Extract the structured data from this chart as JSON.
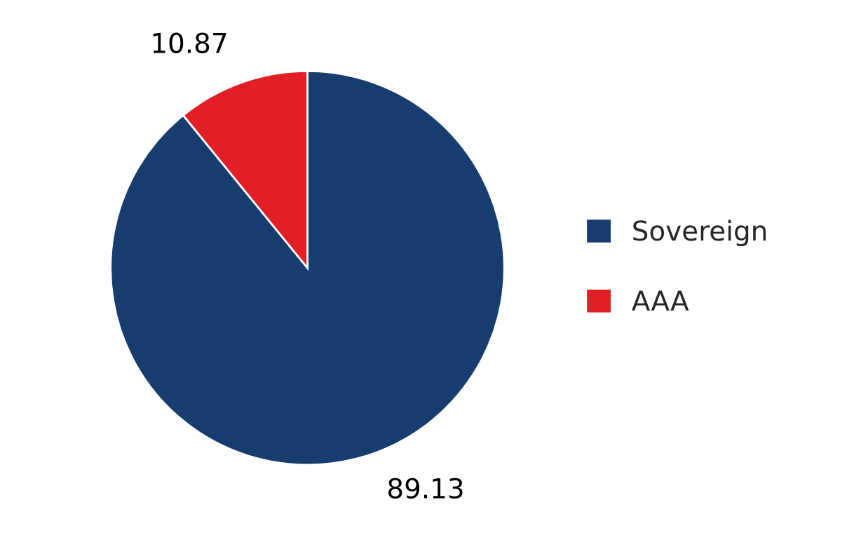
{
  "chart_data": {
    "type": "pie",
    "categories": [
      "Sovereign",
      "AAA"
    ],
    "values": [
      89.13,
      10.87
    ],
    "colors": [
      "#173c6e",
      "#e21f26"
    ],
    "data_labels": true,
    "legend": "right"
  }
}
